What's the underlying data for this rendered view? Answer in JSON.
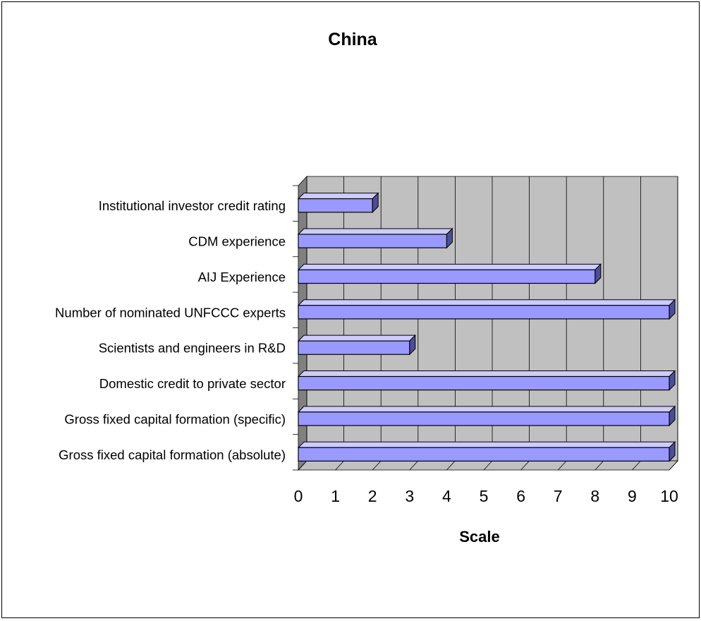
{
  "chart_data": {
    "type": "bar",
    "orientation": "horizontal",
    "style": "3d",
    "title": "China",
    "xlabel": "Scale",
    "ylabel": "",
    "xlim": [
      0,
      10
    ],
    "ticks": [
      "0",
      "1",
      "2",
      "3",
      "4",
      "5",
      "6",
      "7",
      "8",
      "9",
      "10"
    ],
    "grid": true,
    "legend": "none",
    "categories": [
      "Institutional investor credit rating",
      "CDM experience",
      "AIJ Experience",
      "Number of nominated UNFCCC experts",
      "Scientists and engineers in R&D",
      "Domestic credit to private sector",
      "Gross fixed capital formation (specific)",
      "Gross fixed capital formation (absolute)"
    ],
    "values": [
      2,
      4,
      8,
      10,
      3,
      10,
      10,
      10
    ],
    "colors": {
      "bar_front": "#9999ff",
      "bar_top": "#ccccff",
      "bar_side": "#4d4d99",
      "plot_wall": "#c0c0c0",
      "side_wall": "#808080",
      "floor": "#c0c0c0"
    }
  }
}
